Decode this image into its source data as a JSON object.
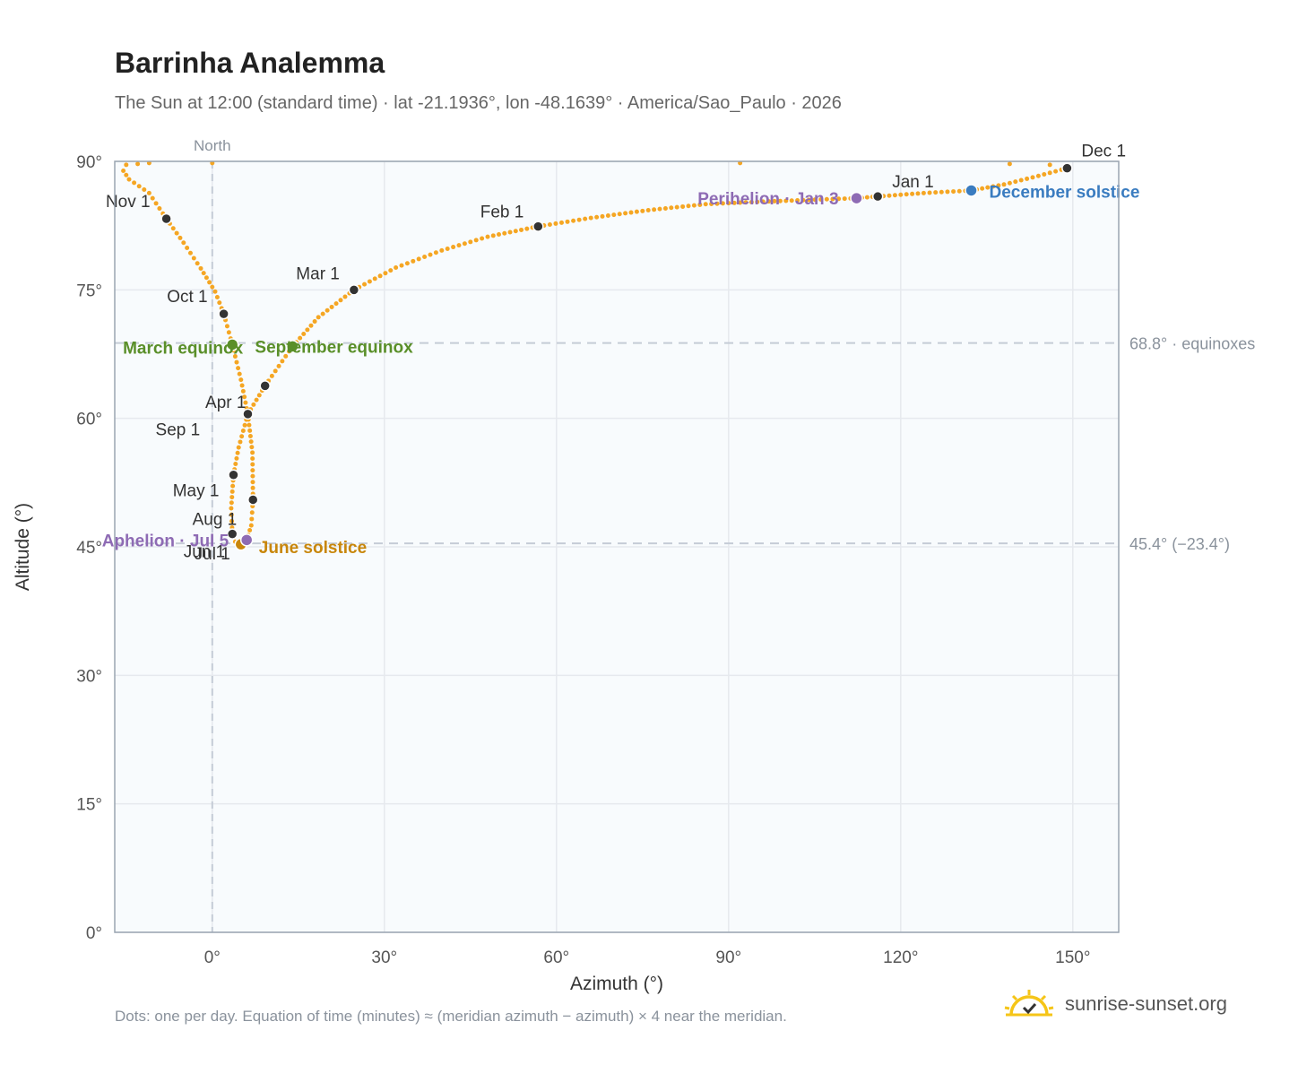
{
  "title": "Barrinha Analemma",
  "subtitle": "The Sun at 12:00 (standard time) · lat -21.1936°, lon -48.1639° · America/Sao_Paulo · 2026",
  "footnote": "Dots: one per day. Equation of time (minutes) ≈ (meridian azimuth − azimuth) × 4 near the meridian.",
  "brand": {
    "name": "sunrise-sunset.org",
    "logo_icon": "sun-check-icon"
  },
  "colors": {
    "path": "#f5a623",
    "month": "#333333",
    "equinox": "#5a8f29",
    "june_solstice": "#c8860a",
    "december_solstice": "#3a7cc0",
    "apsis": "#8e6bb4",
    "grid": "#e6e9ee",
    "ref": "#c5ccd6",
    "plot_bg": "#f8fbfd",
    "axis": "#9aa5b1"
  },
  "chart_data": {
    "type": "scatter",
    "xlabel": "Azimuth (°)",
    "ylabel": "Altitude (°)",
    "xlim": [
      -17,
      158
    ],
    "ylim": [
      0,
      90
    ],
    "x_ticks": [
      0,
      30,
      60,
      90,
      120,
      150
    ],
    "x_tick_labels": [
      "0°",
      "30°",
      "60°",
      "90°",
      "120°",
      "150°"
    ],
    "y_ticks": [
      0,
      15,
      30,
      45,
      60,
      75,
      90
    ],
    "y_tick_labels": [
      "0°",
      "15°",
      "30°",
      "45°",
      "60°",
      "75°",
      "90°"
    ],
    "grid": true,
    "north_label": "North",
    "north_azimuth": 0,
    "reference_lines": [
      {
        "altitude": 68.8,
        "label": "68.8° · equinoxes"
      },
      {
        "altitude": 45.4,
        "label": "45.4° (−23.4°)"
      }
    ],
    "path_points": [
      [
        -15.5,
        88.9
      ],
      [
        -14.5,
        87.9
      ],
      [
        -11,
        86.3
      ],
      [
        -8,
        83.3
      ],
      [
        -5,
        80.5
      ],
      [
        -2,
        77.5
      ],
      [
        0.5,
        74.8
      ],
      [
        2,
        72.2
      ],
      [
        3.5,
        68.6
      ],
      [
        5,
        64.5
      ],
      [
        6.2,
        60.5
      ],
      [
        7,
        56
      ],
      [
        7.1,
        50.5
      ],
      [
        6.8,
        47.5
      ],
      [
        6,
        45.8
      ],
      [
        5,
        45.3
      ],
      [
        4,
        45.6
      ],
      [
        3.5,
        46.5
      ],
      [
        3.3,
        49.5
      ],
      [
        3.7,
        53.4
      ],
      [
        4.6,
        56.6
      ],
      [
        6.2,
        60.5
      ],
      [
        9.2,
        63.8
      ],
      [
        14,
        68.4
      ],
      [
        18.5,
        71.8
      ],
      [
        24.7,
        75
      ],
      [
        32,
        77.6
      ],
      [
        40,
        79.6
      ],
      [
        48,
        81.2
      ],
      [
        56.8,
        82.4
      ],
      [
        66,
        83.4
      ],
      [
        76,
        84.3
      ],
      [
        86,
        85
      ],
      [
        96,
        85.3
      ],
      [
        104,
        85.5
      ],
      [
        112.3,
        85.7
      ],
      [
        116,
        85.9
      ],
      [
        124,
        86.3
      ],
      [
        132.3,
        86.6
      ],
      [
        138,
        87.3
      ],
      [
        144,
        88.3
      ],
      [
        149,
        89.2
      ]
    ],
    "sparse_points": [
      [
        -15,
        89.6
      ],
      [
        -13,
        89.7
      ],
      [
        -11,
        89.8
      ],
      [
        0,
        89.8
      ],
      [
        92,
        89.8
      ],
      [
        139,
        89.7
      ],
      [
        146,
        89.6
      ]
    ],
    "month_markers": [
      {
        "label": "Jan 1",
        "x": 116,
        "y": 85.9,
        "anchor": "start",
        "dx": 16,
        "dy": -10
      },
      {
        "label": "Feb 1",
        "x": 56.8,
        "y": 82.4,
        "anchor": "end",
        "dx": -16,
        "dy": -10
      },
      {
        "label": "Mar 1",
        "x": 24.7,
        "y": 75,
        "anchor": "end",
        "dx": -16,
        "dy": -12
      },
      {
        "label": "Apr 1",
        "x": 6.2,
        "y": 60.5,
        "anchor": "end",
        "dx": -2,
        "dy": -7
      },
      {
        "label": "",
        "x": 9.2,
        "y": 63.8,
        "anchor": "end",
        "dx": 0,
        "dy": 0
      },
      {
        "label": "May 1",
        "x": 3.7,
        "y": 53.4,
        "anchor": "end",
        "dx": -16,
        "dy": 24
      },
      {
        "label": "Jun 1",
        "x": 3.5,
        "y": 46.5,
        "anchor": "end",
        "dx": -8,
        "dy": 26
      },
      {
        "label": "Jul 1",
        "x": 5,
        "y": 45.3,
        "anchor": "end",
        "dx": -12,
        "dy": 17
      },
      {
        "label": "Aug 1",
        "x": 7.1,
        "y": 50.5,
        "anchor": "end",
        "dx": -18,
        "dy": 28
      },
      {
        "label": "Sep 1",
        "x": 3.5,
        "y": 46.5,
        "anchor": "end",
        "dx": -36,
        "dy": -110
      },
      {
        "label": "Oct 1",
        "x": 2,
        "y": 72.2,
        "anchor": "end",
        "dx": -18,
        "dy": -13
      },
      {
        "label": "Nov 1",
        "x": -8,
        "y": 83.3,
        "anchor": "end",
        "dx": -18,
        "dy": -13
      },
      {
        "label": "Dec 1",
        "x": 149,
        "y": 89.2,
        "anchor": "start",
        "dx": 16,
        "dy": -13
      }
    ],
    "events": [
      {
        "label": "March equinox",
        "x": 3.5,
        "y": 68.6,
        "color": "#5a8f29",
        "anchor": "end",
        "dx": 12,
        "dy": 10
      },
      {
        "label": "September equinox",
        "x": 14,
        "y": 68.4,
        "color": "#5a8f29",
        "anchor": "start",
        "dx": -42,
        "dy": 7
      },
      {
        "label": "June solstice",
        "x": 5,
        "y": 45.3,
        "color": "#c8860a",
        "anchor": "start",
        "dx": 20,
        "dy": 10
      },
      {
        "label": "December solstice",
        "x": 132.3,
        "y": 86.6,
        "color": "#3a7cc0",
        "anchor": "start",
        "dx": 20,
        "dy": 8
      },
      {
        "label": "Perihelion · Jan 3",
        "x": 112.3,
        "y": 85.7,
        "color": "#8e6bb4",
        "anchor": "end",
        "dx": -20,
        "dy": 7
      },
      {
        "label": "Aphelion · Jul 5",
        "x": 6,
        "y": 45.8,
        "color": "#8e6bb4",
        "anchor": "end",
        "dx": -20,
        "dy": 7
      }
    ]
  }
}
